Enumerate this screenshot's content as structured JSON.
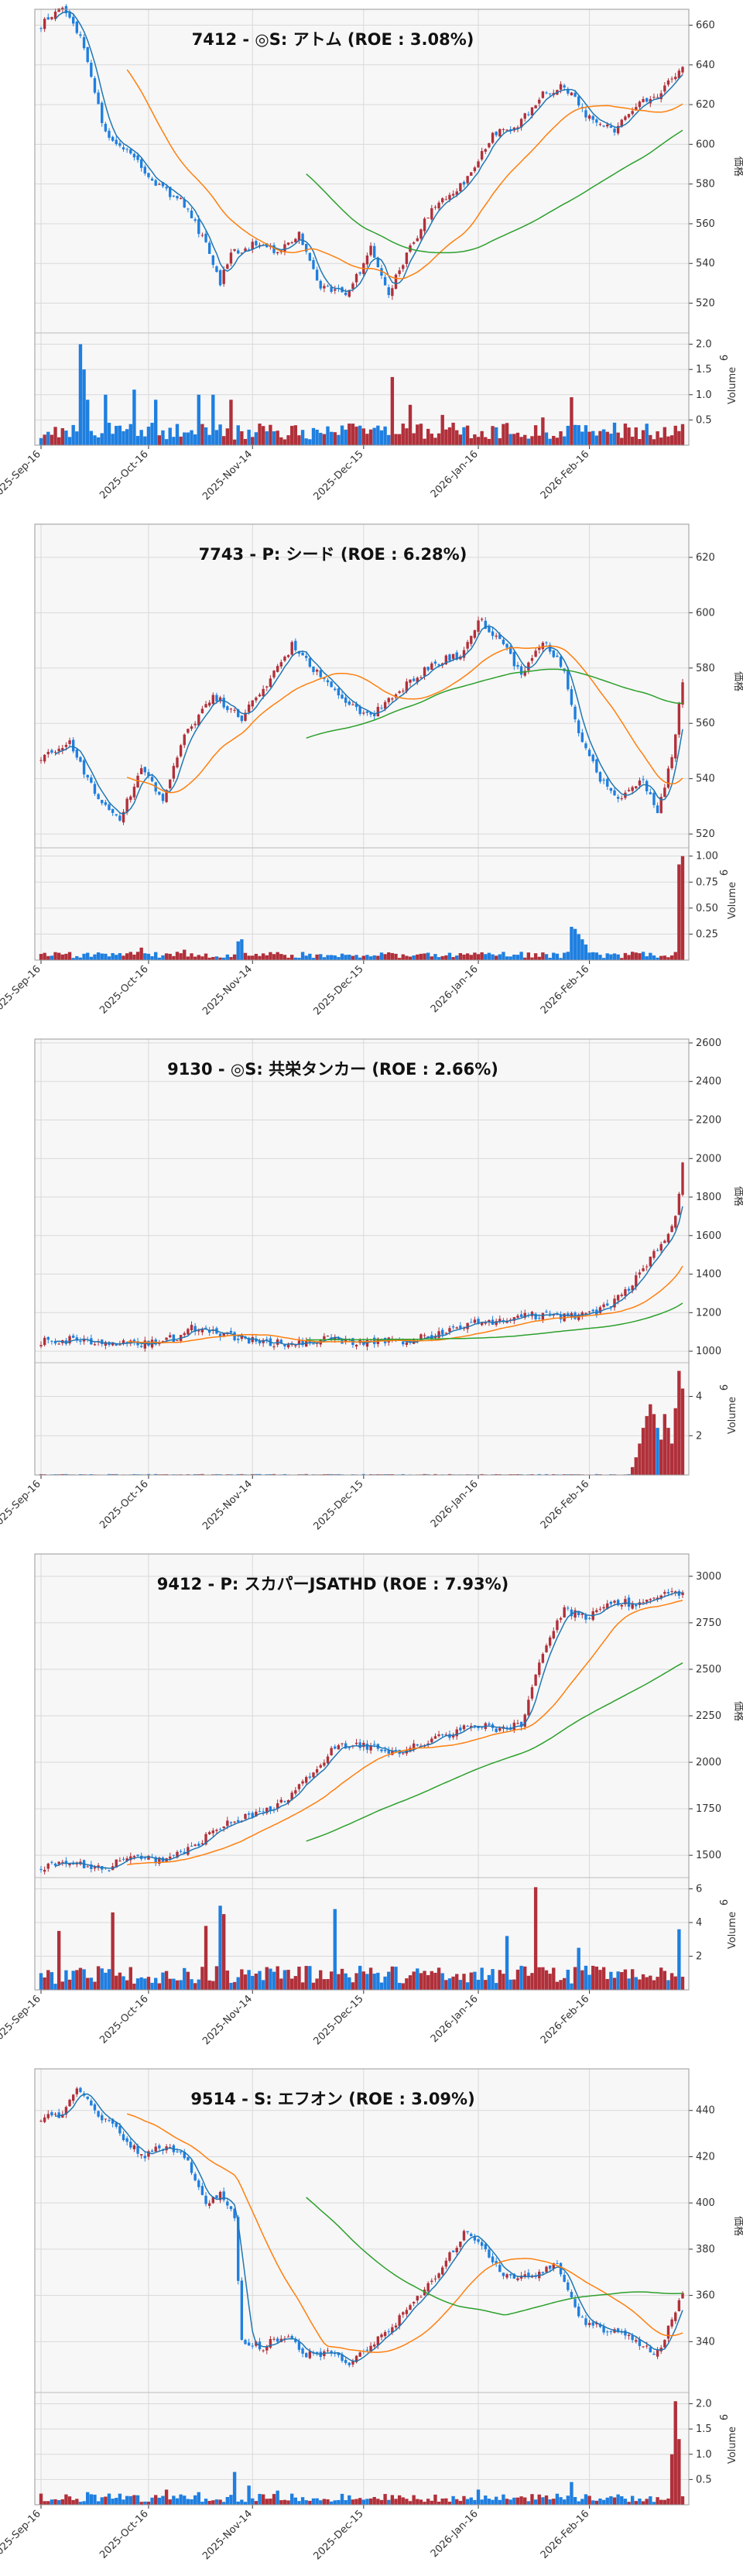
{
  "colors": {
    "up": "#b0303a",
    "down": "#1f7fe0",
    "ma_short": "#1f77b4",
    "ma_mid": "#ff7f0e",
    "ma_long": "#2ca02c",
    "plot_bg": "#f7f7f7"
  },
  "x_axis": {
    "ticks": [
      "2025-Sep-16",
      "2025-Oct-16",
      "2025-Nov-14",
      "2025-Dec-15",
      "2026-Jan-16",
      "2026-Feb-16"
    ],
    "tick_index": [
      0,
      30,
      59,
      90,
      122,
      153
    ]
  },
  "chart_data": [
    {
      "type": "candlestick",
      "title": "7412 - ◎S: アトム (ROE : 3.08%)",
      "ylabel": "価格",
      "vol_label": "Volume",
      "vol_exp": "6",
      "ylim": [
        505,
        668
      ],
      "yticks": [
        520,
        540,
        560,
        580,
        600,
        620,
        640,
        660
      ],
      "vol_max": 2.1,
      "vol_ticks": [
        0.5,
        1.0,
        1.5,
        2.0
      ],
      "vol_tick_labels": [
        "0.5",
        "1.0",
        "1.5",
        "2.0"
      ],
      "n": 180,
      "anchors": [
        [
          0,
          660
        ],
        [
          6,
          668
        ],
        [
          12,
          650
        ],
        [
          18,
          605
        ],
        [
          25,
          595
        ],
        [
          32,
          580
        ],
        [
          40,
          570
        ],
        [
          46,
          550
        ],
        [
          50,
          530
        ],
        [
          53,
          545
        ],
        [
          60,
          550
        ],
        [
          66,
          545
        ],
        [
          72,
          555
        ],
        [
          78,
          528
        ],
        [
          86,
          525
        ],
        [
          92,
          548
        ],
        [
          97,
          525
        ],
        [
          103,
          548
        ],
        [
          110,
          570
        ],
        [
          118,
          580
        ],
        [
          126,
          605
        ],
        [
          133,
          610
        ],
        [
          140,
          625
        ],
        [
          146,
          630
        ],
        [
          152,
          615
        ],
        [
          160,
          608
        ],
        [
          166,
          620
        ],
        [
          172,
          625
        ],
        [
          179,
          638
        ]
      ],
      "vol_base": 0.28,
      "vol_spikes": [
        [
          11,
          2.0
        ],
        [
          12,
          1.5
        ],
        [
          13,
          0.9
        ],
        [
          18,
          1.0
        ],
        [
          26,
          1.1
        ],
        [
          32,
          0.9
        ],
        [
          44,
          1.0
        ],
        [
          48,
          1.0
        ],
        [
          53,
          0.9
        ],
        [
          98,
          1.35
        ],
        [
          103,
          0.8
        ],
        [
          148,
          0.95
        ],
        [
          112,
          0.6
        ],
        [
          140,
          0.55
        ]
      ],
      "seed": 7412,
      "show_long": true
    },
    {
      "type": "candlestick",
      "title": "7743 - P: シード (ROE : 6.28%)",
      "ylabel": "価格",
      "vol_label": "Volume",
      "vol_exp": "6",
      "ylim": [
        515,
        632
      ],
      "yticks": [
        520,
        540,
        560,
        580,
        600,
        620
      ],
      "vol_max": 1.02,
      "vol_ticks": [
        0.25,
        0.5,
        0.75,
        1.0
      ],
      "vol_tick_labels": [
        "0.25",
        "0.50",
        "0.75",
        "1.00"
      ],
      "n": 180,
      "anchors": [
        [
          0,
          548
        ],
        [
          8,
          553
        ],
        [
          16,
          532
        ],
        [
          22,
          525
        ],
        [
          28,
          545
        ],
        [
          34,
          532
        ],
        [
          40,
          555
        ],
        [
          48,
          570
        ],
        [
          56,
          562
        ],
        [
          62,
          572
        ],
        [
          70,
          588
        ],
        [
          76,
          580
        ],
        [
          84,
          568
        ],
        [
          92,
          562
        ],
        [
          100,
          572
        ],
        [
          110,
          582
        ],
        [
          118,
          585
        ],
        [
          122,
          598
        ],
        [
          128,
          590
        ],
        [
          134,
          578
        ],
        [
          140,
          590
        ],
        [
          146,
          580
        ],
        [
          150,
          555
        ],
        [
          156,
          540
        ],
        [
          162,
          533
        ],
        [
          168,
          540
        ],
        [
          172,
          527
        ],
        [
          176,
          548
        ],
        [
          179,
          575
        ]
      ],
      "vol_base": 0.05,
      "vol_spikes": [
        [
          28,
          0.12
        ],
        [
          40,
          0.1
        ],
        [
          55,
          0.18
        ],
        [
          56,
          0.2
        ],
        [
          148,
          0.32
        ],
        [
          149,
          0.3
        ],
        [
          150,
          0.25
        ],
        [
          151,
          0.2
        ],
        [
          152,
          0.15
        ],
        [
          178,
          0.92
        ],
        [
          179,
          1.0
        ]
      ],
      "seed": 7743,
      "show_long": true
    },
    {
      "type": "candlestick",
      "title": "9130 - ◎S: 共栄タンカー (ROE : 2.66%)",
      "ylabel": "価格",
      "vol_label": "Volume",
      "vol_exp": "6",
      "ylim": [
        940,
        2620
      ],
      "yticks": [
        1000,
        1200,
        1400,
        1600,
        1800,
        2000,
        2200,
        2400,
        2600
      ],
      "vol_max": 5.4,
      "vol_ticks": [
        2,
        4
      ],
      "vol_tick_labels": [
        "2",
        "4"
      ],
      "n": 180,
      "anchors": [
        [
          0,
          1050
        ],
        [
          10,
          1060
        ],
        [
          20,
          1040
        ],
        [
          30,
          1040
        ],
        [
          38,
          1070
        ],
        [
          42,
          1120
        ],
        [
          50,
          1090
        ],
        [
          60,
          1050
        ],
        [
          70,
          1040
        ],
        [
          80,
          1060
        ],
        [
          90,
          1050
        ],
        [
          100,
          1050
        ],
        [
          110,
          1080
        ],
        [
          120,
          1140
        ],
        [
          130,
          1170
        ],
        [
          140,
          1190
        ],
        [
          148,
          1180
        ],
        [
          155,
          1200
        ],
        [
          160,
          1260
        ],
        [
          165,
          1350
        ],
        [
          170,
          1480
        ],
        [
          174,
          1560
        ],
        [
          177,
          1700
        ],
        [
          179,
          1960
        ]
      ],
      "vol_base": 0.03,
      "vol_spikes": [
        [
          165,
          0.4
        ],
        [
          166,
          0.9
        ],
        [
          167,
          1.6
        ],
        [
          168,
          2.4
        ],
        [
          169,
          3.0
        ],
        [
          170,
          3.6
        ],
        [
          171,
          3.1
        ],
        [
          172,
          2.4
        ],
        [
          173,
          1.8
        ],
        [
          174,
          3.1
        ],
        [
          175,
          2.4
        ],
        [
          176,
          1.6
        ],
        [
          177,
          3.4
        ],
        [
          178,
          5.3
        ],
        [
          179,
          4.4
        ]
      ],
      "seed": 9130,
      "show_long": true
    },
    {
      "type": "candlestick",
      "title": "9412 - P: スカパーJSATHD (ROE : 7.93%)",
      "ylabel": "価格",
      "vol_label": "Volume",
      "vol_exp": "6",
      "ylim": [
        1380,
        3120
      ],
      "yticks": [
        1500,
        1750,
        2000,
        2250,
        2500,
        2750,
        3000
      ],
      "vol_max": 6.3,
      "vol_ticks": [
        2,
        4,
        6
      ],
      "vol_tick_labels": [
        "2",
        "4",
        "6"
      ],
      "n": 180,
      "anchors": [
        [
          0,
          1440
        ],
        [
          10,
          1460
        ],
        [
          18,
          1420
        ],
        [
          24,
          1500
        ],
        [
          32,
          1470
        ],
        [
          42,
          1540
        ],
        [
          50,
          1650
        ],
        [
          58,
          1720
        ],
        [
          66,
          1760
        ],
        [
          74,
          1900
        ],
        [
          82,
          2080
        ],
        [
          90,
          2090
        ],
        [
          98,
          2050
        ],
        [
          106,
          2100
        ],
        [
          114,
          2150
        ],
        [
          120,
          2200
        ],
        [
          128,
          2180
        ],
        [
          134,
          2200
        ],
        [
          140,
          2600
        ],
        [
          146,
          2820
        ],
        [
          152,
          2780
        ],
        [
          160,
          2860
        ],
        [
          168,
          2850
        ],
        [
          174,
          2900
        ],
        [
          179,
          2920
        ]
      ],
      "vol_base": 0.9,
      "vol_spikes": [
        [
          5,
          3.5
        ],
        [
          20,
          4.6
        ],
        [
          46,
          3.8
        ],
        [
          50,
          5.0
        ],
        [
          51,
          4.5
        ],
        [
          82,
          4.8
        ],
        [
          138,
          6.1
        ],
        [
          130,
          3.2
        ],
        [
          150,
          2.5
        ],
        [
          178,
          3.6
        ]
      ],
      "seed": 9412,
      "show_long": true
    },
    {
      "type": "candlestick",
      "title": "9514 - S: エフオン (ROE : 3.09%)",
      "ylabel": "価格",
      "vol_label": "Volume",
      "vol_exp": "6",
      "ylim": [
        318,
        458
      ],
      "yticks": [
        340,
        360,
        380,
        400,
        420,
        440
      ],
      "vol_max": 2.1,
      "vol_ticks": [
        0.5,
        1.0,
        1.5,
        2.0
      ],
      "vol_tick_labels": [
        "0.5",
        "1.0",
        "1.5",
        "2.0"
      ],
      "n": 180,
      "anchors": [
        [
          0,
          437
        ],
        [
          6,
          438
        ],
        [
          10,
          449
        ],
        [
          16,
          438
        ],
        [
          22,
          430
        ],
        [
          28,
          420
        ],
        [
          34,
          424
        ],
        [
          40,
          420
        ],
        [
          46,
          400
        ],
        [
          50,
          405
        ],
        [
          54,
          395
        ],
        [
          56,
          340
        ],
        [
          62,
          338
        ],
        [
          68,
          343
        ],
        [
          74,
          335
        ],
        [
          80,
          335
        ],
        [
          86,
          330
        ],
        [
          92,
          338
        ],
        [
          100,
          350
        ],
        [
          110,
          368
        ],
        [
          118,
          387
        ],
        [
          122,
          383
        ],
        [
          130,
          368
        ],
        [
          138,
          368
        ],
        [
          144,
          375
        ],
        [
          150,
          350
        ],
        [
          158,
          345
        ],
        [
          166,
          340
        ],
        [
          172,
          335
        ],
        [
          179,
          360
        ]
      ],
      "vol_base": 0.14,
      "vol_spikes": [
        [
          13,
          0.25
        ],
        [
          22,
          0.22
        ],
        [
          35,
          0.3
        ],
        [
          44,
          0.25
        ],
        [
          54,
          0.65
        ],
        [
          58,
          0.38
        ],
        [
          66,
          0.28
        ],
        [
          122,
          0.3
        ],
        [
          148,
          0.45
        ],
        [
          176,
          1.0
        ],
        [
          177,
          2.05
        ],
        [
          178,
          1.3
        ]
      ],
      "seed": 9514,
      "show_long": true
    }
  ]
}
